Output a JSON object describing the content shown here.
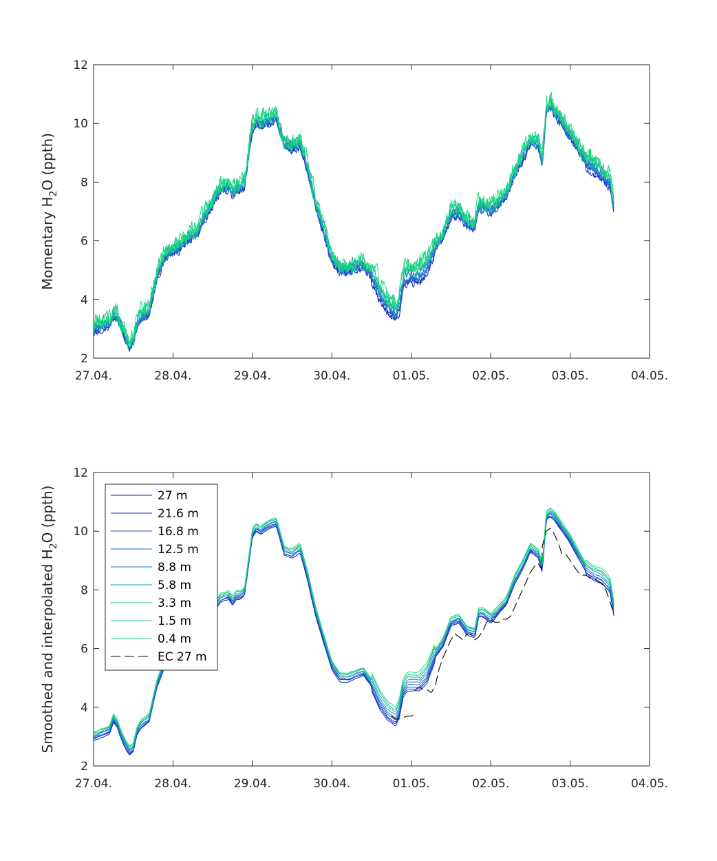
{
  "chart_data": [
    {
      "type": "line",
      "ylabel": "Momentary H₂O (ppth)",
      "ylabel_parts": {
        "pre": "Momentary H",
        "sub": "2",
        "post": "O (ppth)"
      },
      "ylim": [
        2,
        12
      ],
      "yticks": [
        2,
        4,
        6,
        8,
        10,
        12
      ],
      "xlim": [
        0,
        7
      ],
      "xtick_labels": [
        "27.04.",
        "28.04.",
        "29.04.",
        "30.04.",
        "01.05.",
        "02.05.",
        "03.05.",
        "04.05."
      ],
      "grid": false,
      "legend": null,
      "series": [
        {
          "height": "27 m",
          "color": "#0a1fbf",
          "offset": -0.12,
          "noise": 0.1
        },
        {
          "height": "21.6 m",
          "color": "#1236c8",
          "offset": -0.08,
          "noise": 0.11
        },
        {
          "height": "16.8 m",
          "color": "#1a4fd0",
          "offset": -0.05,
          "noise": 0.12
        },
        {
          "height": "12.5 m",
          "color": "#1f66cf",
          "offset": -0.02,
          "noise": 0.13
        },
        {
          "height": "8.8 m",
          "color": "#1e80c4",
          "offset": 0.02,
          "noise": 0.15
        },
        {
          "height": "5.8 m",
          "color": "#1c98b4",
          "offset": 0.06,
          "noise": 0.17
        },
        {
          "height": "3.3 m",
          "color": "#1ab29e",
          "offset": 0.1,
          "noise": 0.19
        },
        {
          "height": "1.5 m",
          "color": "#18c98a",
          "offset": 0.14,
          "noise": 0.22
        },
        {
          "height": "0.4 m",
          "color": "#16df78",
          "offset": 0.18,
          "noise": 0.25
        }
      ],
      "x": [
        0,
        0.1,
        0.2,
        0.25,
        0.3,
        0.35,
        0.4,
        0.45,
        0.5,
        0.55,
        0.6,
        0.7,
        0.8,
        0.9,
        1.0,
        1.05,
        1.1,
        1.2,
        1.3,
        1.4,
        1.5,
        1.6,
        1.7,
        1.75,
        1.8,
        1.85,
        1.9,
        2.0,
        2.05,
        2.1,
        2.2,
        2.3,
        2.4,
        2.5,
        2.6,
        2.7,
        2.8,
        2.9,
        3.0,
        3.1,
        3.2,
        3.3,
        3.4,
        3.5,
        3.6,
        3.7,
        3.8,
        3.85,
        3.9,
        3.95,
        4.0,
        4.1,
        4.2,
        4.3,
        4.4,
        4.5,
        4.6,
        4.7,
        4.8,
        4.85,
        4.9,
        5.0,
        5.1,
        5.2,
        5.3,
        5.4,
        5.5,
        5.6,
        5.65,
        5.7,
        5.75,
        5.8,
        5.9,
        6.0,
        6.1,
        6.2,
        6.3,
        6.4,
        6.5,
        6.55
      ],
      "y": [
        3.0,
        3.1,
        3.2,
        3.5,
        3.4,
        3.0,
        2.7,
        2.4,
        2.6,
        3.2,
        3.4,
        3.6,
        4.8,
        5.5,
        5.7,
        5.75,
        5.8,
        6.1,
        6.3,
        6.8,
        7.3,
        7.8,
        7.8,
        7.6,
        7.8,
        7.8,
        7.9,
        9.9,
        10.1,
        10.0,
        10.1,
        10.2,
        9.3,
        9.2,
        9.3,
        8.4,
        7.2,
        6.3,
        5.4,
        5.0,
        5.0,
        5.1,
        5.2,
        4.8,
        4.2,
        3.8,
        3.5,
        3.8,
        4.6,
        4.8,
        4.8,
        4.8,
        5.1,
        5.8,
        6.2,
        6.9,
        7.0,
        6.6,
        6.5,
        7.2,
        7.2,
        7.0,
        7.3,
        7.6,
        8.3,
        8.8,
        9.4,
        9.3,
        8.6,
        10.5,
        10.6,
        10.4,
        10.0,
        9.6,
        9.2,
        8.7,
        8.5,
        8.3,
        8.0,
        7.2
      ]
    },
    {
      "type": "line",
      "ylabel": "Smoothed and interpolated H₂O (ppth)",
      "ylabel_parts": {
        "pre": "Smoothed and interpolated H",
        "sub": "2",
        "post": "O (ppth)"
      },
      "ylim": [
        2,
        12
      ],
      "yticks": [
        2,
        4,
        6,
        8,
        10,
        12
      ],
      "xlim": [
        0,
        7
      ],
      "xtick_labels": [
        "27.04.",
        "28.04.",
        "29.04.",
        "30.04.",
        "01.05.",
        "02.05.",
        "03.05.",
        "04.05."
      ],
      "grid": false,
      "legend": "top-left",
      "series": [
        {
          "name": "27 m",
          "color": "#0a1fbf",
          "offset": -0.12
        },
        {
          "name": "21.6 m",
          "color": "#1236c8",
          "offset": -0.08
        },
        {
          "name": "16.8 m",
          "color": "#1a4fd0",
          "offset": -0.05
        },
        {
          "name": "12.5 m",
          "color": "#1f66cf",
          "offset": -0.02
        },
        {
          "name": "8.8 m",
          "color": "#1e80c4",
          "offset": 0.02
        },
        {
          "name": "5.8 m",
          "color": "#1c98b4",
          "offset": 0.06
        },
        {
          "name": "3.3 m",
          "color": "#1ab29e",
          "offset": 0.1
        },
        {
          "name": "1.5 m",
          "color": "#18c98a",
          "offset": 0.14
        },
        {
          "name": "0.4 m",
          "color": "#16df78",
          "offset": 0.18
        }
      ],
      "ec_series": {
        "name": "EC 27 m",
        "color": "#000000",
        "segments": [
          {
            "x": [
              3.75,
              3.8,
              3.85,
              3.9,
              3.95,
              4.0,
              4.05
            ],
            "y": [
              3.7,
              3.6,
              3.6,
              3.65,
              3.7,
              3.7,
              3.75
            ]
          },
          {
            "x": [
              4.05,
              4.1,
              4.15,
              4.2,
              4.25,
              4.3,
              4.35,
              4.4,
              4.45,
              4.5,
              4.55,
              4.6,
              4.65,
              4.7,
              4.75,
              4.8,
              4.85,
              4.9,
              4.95,
              5.0,
              5.05,
              5.1,
              5.15,
              5.2,
              5.25,
              5.3,
              5.35,
              5.4,
              5.45,
              5.5,
              5.55,
              5.6,
              5.62,
              5.64,
              5.65,
              5.7,
              5.75,
              5.8,
              5.85,
              5.9,
              5.95,
              6.0,
              6.05,
              6.1,
              6.15,
              6.2,
              6.25,
              6.3,
              6.35,
              6.4,
              6.45,
              6.5,
              6.55
            ],
            "y": [
              4.6,
              4.7,
              4.6,
              4.6,
              4.5,
              4.7,
              5.3,
              5.7,
              6.0,
              6.3,
              6.5,
              6.4,
              6.3,
              6.5,
              6.5,
              6.3,
              6.4,
              6.6,
              6.9,
              7.0,
              6.9,
              6.9,
              7.0,
              7.0,
              7.1,
              7.4,
              7.7,
              8.0,
              8.3,
              8.6,
              8.8,
              8.9,
              8.8,
              8.7,
              9.5,
              10.0,
              10.1,
              9.9,
              9.6,
              9.2,
              9.2,
              9.0,
              8.8,
              8.6,
              8.5,
              8.5,
              8.4,
              8.4,
              8.3,
              8.2,
              8.0,
              7.6,
              7.2
            ]
          }
        ]
      },
      "x": [
        0,
        0.1,
        0.2,
        0.25,
        0.3,
        0.35,
        0.4,
        0.45,
        0.5,
        0.55,
        0.6,
        0.7,
        0.8,
        0.9,
        1.0,
        1.05,
        1.1,
        1.2,
        1.3,
        1.4,
        1.5,
        1.6,
        1.7,
        1.75,
        1.8,
        1.85,
        1.9,
        2.0,
        2.05,
        2.1,
        2.2,
        2.3,
        2.4,
        2.5,
        2.6,
        2.7,
        2.8,
        2.9,
        3.0,
        3.1,
        3.2,
        3.3,
        3.4,
        3.5,
        3.6,
        3.7,
        3.8,
        3.85,
        3.9,
        3.95,
        4.0,
        4.1,
        4.2,
        4.3,
        4.4,
        4.5,
        4.6,
        4.7,
        4.8,
        4.85,
        4.9,
        5.0,
        5.1,
        5.2,
        5.3,
        5.4,
        5.5,
        5.6,
        5.65,
        5.7,
        5.75,
        5.8,
        5.9,
        6.0,
        6.1,
        6.2,
        6.3,
        6.4,
        6.5,
        6.55
      ],
      "y": [
        3.0,
        3.1,
        3.2,
        3.6,
        3.4,
        3.0,
        2.7,
        2.5,
        2.6,
        3.2,
        3.4,
        3.6,
        4.8,
        5.5,
        5.7,
        5.75,
        5.8,
        6.1,
        6.3,
        6.8,
        7.3,
        7.7,
        7.8,
        7.6,
        7.8,
        7.8,
        7.9,
        9.9,
        10.1,
        10.0,
        10.2,
        10.3,
        9.3,
        9.2,
        9.4,
        8.4,
        7.2,
        6.3,
        5.4,
        5.0,
        5.0,
        5.1,
        5.2,
        4.8,
        4.2,
        3.8,
        3.6,
        3.9,
        4.6,
        4.8,
        4.8,
        4.8,
        5.1,
        5.8,
        6.2,
        6.9,
        7.0,
        6.6,
        6.5,
        7.2,
        7.2,
        7.0,
        7.3,
        7.6,
        8.3,
        8.8,
        9.4,
        9.2,
        8.7,
        10.5,
        10.6,
        10.5,
        10.1,
        9.7,
        9.2,
        8.7,
        8.5,
        8.4,
        8.1,
        7.3
      ]
    }
  ]
}
